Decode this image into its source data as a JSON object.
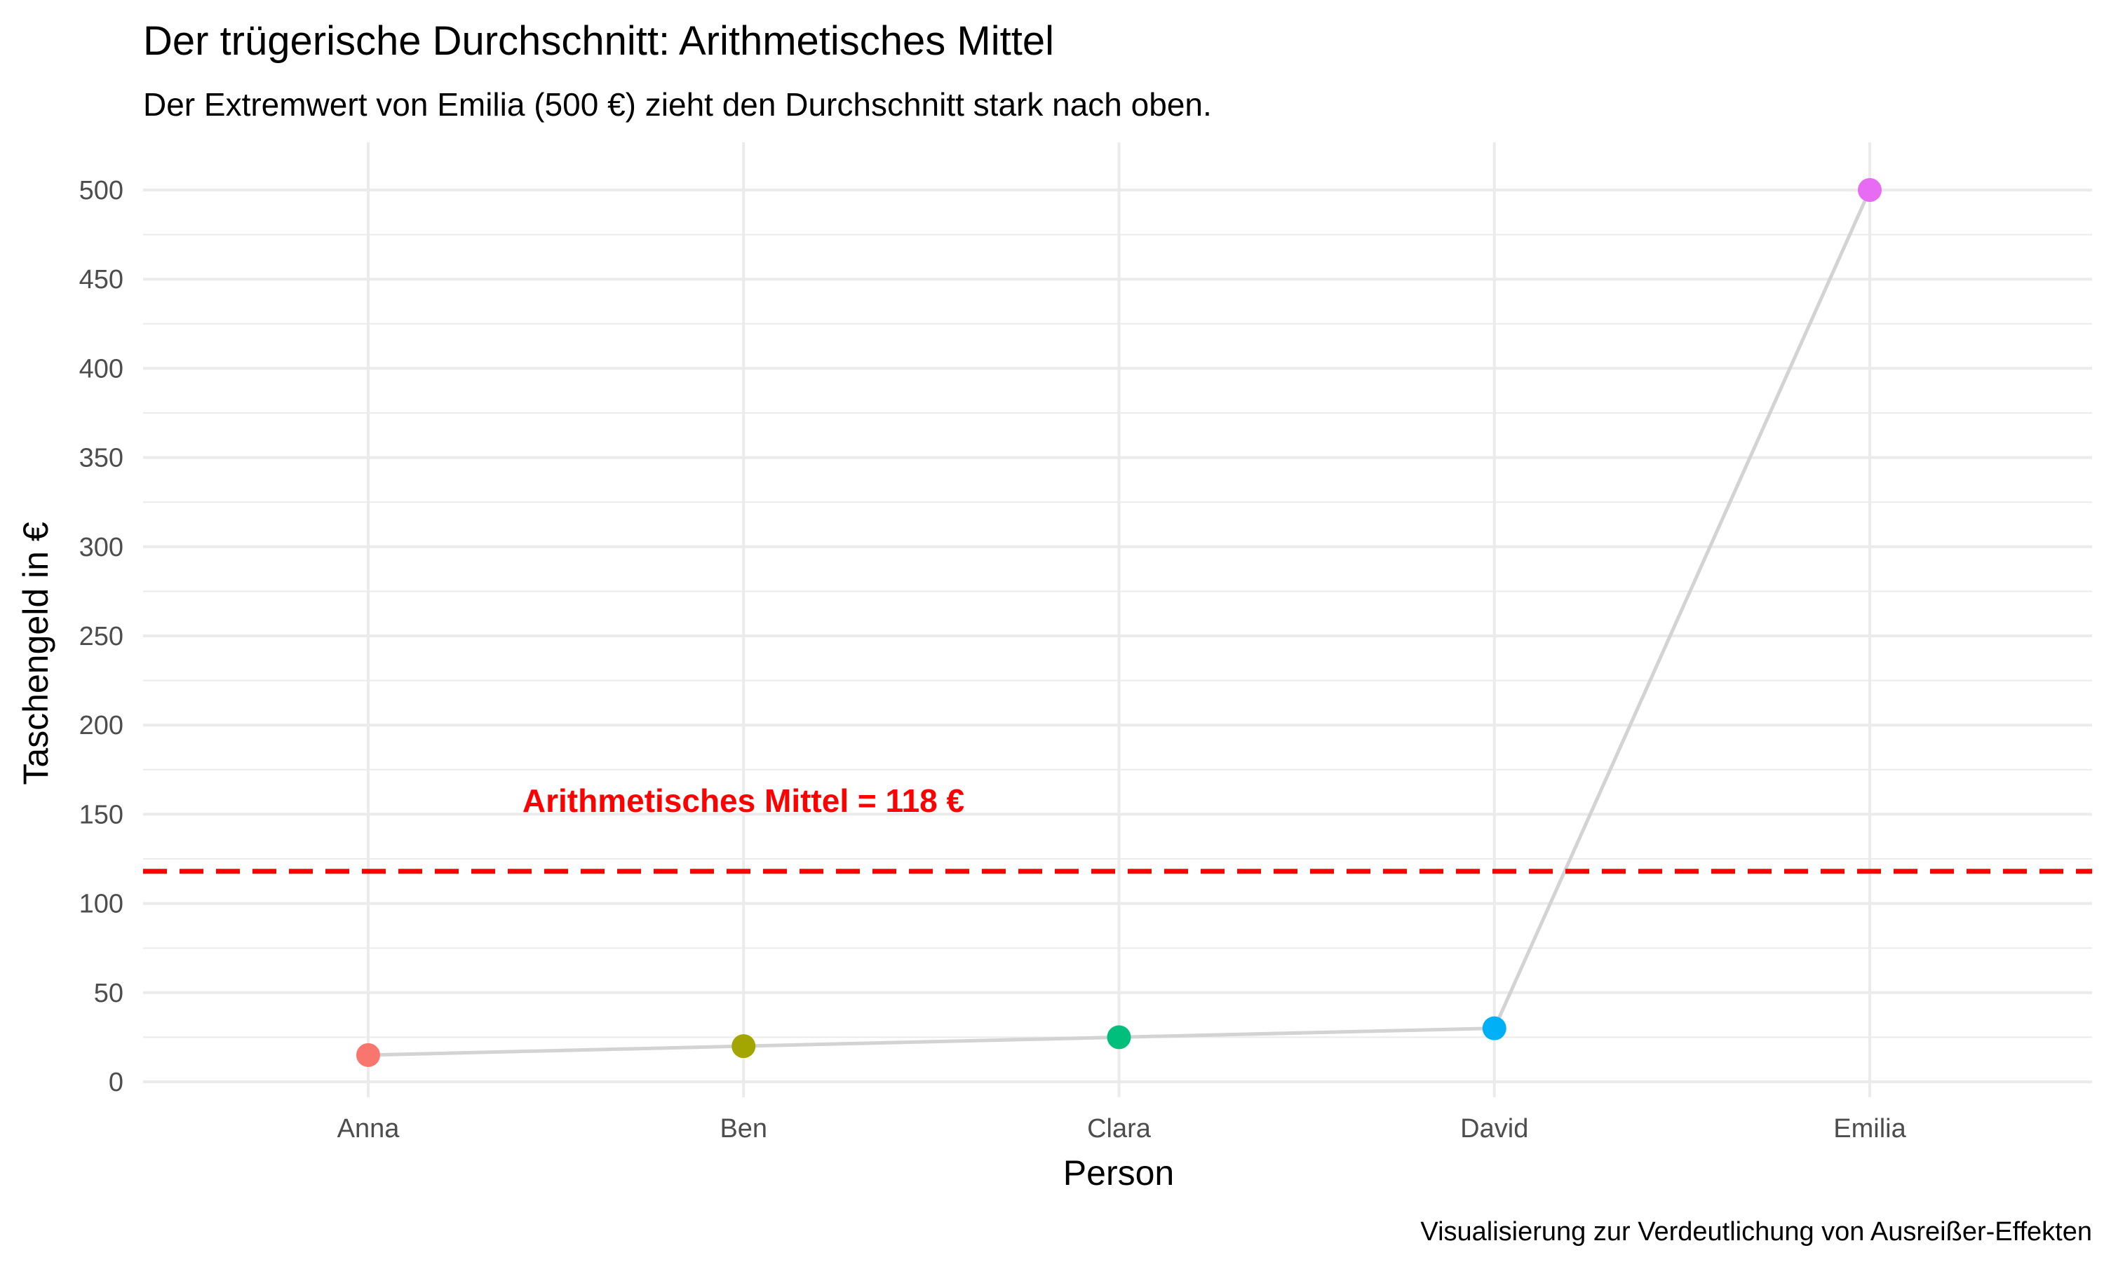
{
  "chart_data": {
    "type": "line",
    "title": "Der trügerische Durchschnitt: Arithmetisches Mittel",
    "subtitle": "Der Extremwert von Emilia (500 €) zieht den Durchschnitt stark nach oben.",
    "xlabel": "Person",
    "ylabel": "Taschengeld in €",
    "caption": "Visualisierung zur Verdeutlichung von Ausreißer-Effekten",
    "categories": [
      "Anna",
      "Ben",
      "Clara",
      "David",
      "Emilia"
    ],
    "values": [
      15,
      20,
      25,
      30,
      500
    ],
    "point_colors": [
      "#F8766D",
      "#A3A500",
      "#00BF7D",
      "#00B0F6",
      "#E76BF3"
    ],
    "line_color": "#d3d3d3",
    "ylim": [
      0,
      500
    ],
    "yticks": [
      "0",
      "50",
      "100",
      "150",
      "200",
      "250",
      "300",
      "350",
      "400",
      "450",
      "500"
    ],
    "grid": true,
    "legend": "none",
    "mean": {
      "value": 118,
      "label": "Arithmetisches Mittel = 118 €",
      "color": "#ff0000",
      "style": "dashed"
    }
  }
}
